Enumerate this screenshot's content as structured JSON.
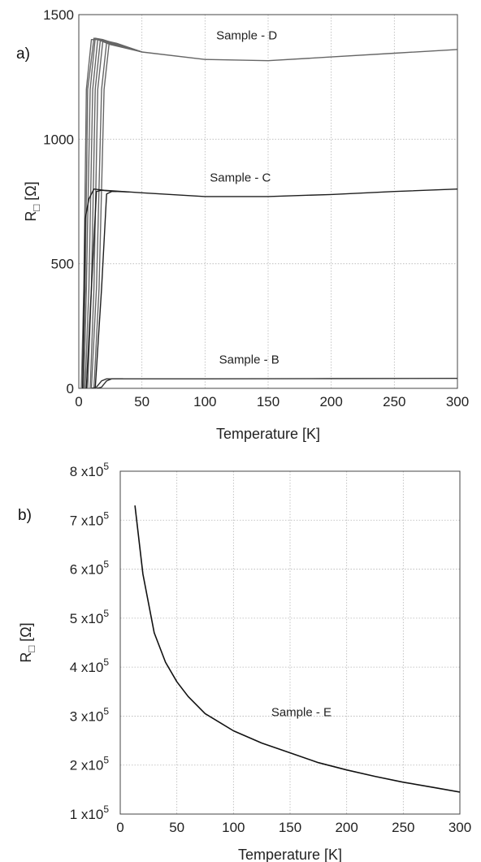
{
  "chart_data": [
    {
      "panel_label": "a)",
      "type": "line",
      "xlabel": "Temperature [K]",
      "ylabel_main": "R",
      "ylabel_sub": "□",
      "ylabel_unit": "[Ω]",
      "xlim": [
        0,
        300
      ],
      "ylim": [
        0,
        1500
      ],
      "x_ticks": [
        "0",
        "50",
        "100",
        "150",
        "200",
        "250",
        "300"
      ],
      "y_ticks": [
        "0",
        "500",
        "1000",
        "1500"
      ],
      "grid": true,
      "annotations": [
        {
          "text": "Sample - D",
          "x": 133,
          "y": 1400
        },
        {
          "text": "Sample - C",
          "x": 128,
          "y": 830
        },
        {
          "text": "Sample - B",
          "x": 135,
          "y": 100
        }
      ],
      "series": [
        {
          "group": "D",
          "x": [
            2,
            4,
            6,
            10,
            15,
            25,
            50,
            100,
            150,
            200,
            250,
            300
          ],
          "y": [
            0,
            400,
            1200,
            1400,
            1400,
            1380,
            1350,
            1320,
            1315,
            1330,
            1345,
            1360
          ]
        },
        {
          "group": "D",
          "x": [
            3,
            5,
            7,
            12,
            17,
            27,
            50
          ],
          "y": [
            0,
            400,
            1200,
            1405,
            1400,
            1385,
            1350
          ]
        },
        {
          "group": "D",
          "x": [
            4,
            6,
            9,
            13,
            19,
            28,
            50
          ],
          "y": [
            0,
            400,
            1200,
            1405,
            1400,
            1385,
            1350
          ]
        },
        {
          "group": "D",
          "x": [
            5,
            8,
            11,
            15,
            21,
            30,
            50
          ],
          "y": [
            0,
            400,
            1200,
            1400,
            1395,
            1385,
            1350
          ]
        },
        {
          "group": "D",
          "x": [
            7,
            10,
            13,
            17,
            23,
            31,
            50
          ],
          "y": [
            0,
            400,
            1200,
            1395,
            1390,
            1382,
            1350
          ]
        },
        {
          "group": "D",
          "x": [
            9,
            12,
            15,
            19,
            25,
            33,
            50
          ],
          "y": [
            0,
            400,
            1200,
            1392,
            1385,
            1378,
            1350
          ]
        },
        {
          "group": "D",
          "x": [
            10,
            14,
            18,
            22,
            27,
            35,
            50
          ],
          "y": [
            0,
            400,
            1200,
            1388,
            1382,
            1375,
            1350
          ]
        },
        {
          "group": "D",
          "x": [
            12,
            16,
            20,
            24,
            29,
            37,
            50
          ],
          "y": [
            0,
            400,
            1200,
            1385,
            1378,
            1370,
            1350
          ]
        },
        {
          "group": "C",
          "x": [
            3,
            5,
            8,
            12,
            20,
            50,
            100,
            150,
            200,
            250,
            300
          ],
          "y": [
            0,
            680,
            760,
            800,
            795,
            785,
            770,
            770,
            778,
            790,
            800
          ]
        },
        {
          "group": "C",
          "x": [
            6,
            10,
            14,
            18,
            22,
            30
          ],
          "y": [
            0,
            400,
            790,
            795,
            793,
            790
          ]
        },
        {
          "group": "C",
          "x": [
            13,
            18,
            22,
            26,
            30,
            40
          ],
          "y": [
            0,
            400,
            780,
            790,
            790,
            788
          ]
        },
        {
          "group": "B",
          "x": [
            10,
            14,
            18,
            22,
            30,
            100,
            200,
            300
          ],
          "y": [
            0,
            5,
            30,
            38,
            38,
            38,
            39,
            40
          ]
        },
        {
          "group": "B",
          "x": [
            14,
            18,
            22,
            26,
            35
          ],
          "y": [
            0,
            5,
            30,
            38,
            38
          ]
        }
      ]
    },
    {
      "panel_label": "b)",
      "type": "scatter",
      "xlabel": "Temperature [K]",
      "ylabel_main": "R",
      "ylabel_sub": "□",
      "ylabel_unit": "[Ω]",
      "xlim": [
        0,
        300
      ],
      "ylim": [
        100000,
        800000
      ],
      "x_ticks": [
        "0",
        "50",
        "100",
        "150",
        "200",
        "250",
        "300"
      ],
      "y_ticks": [
        {
          "mantissa": "1",
          "exp": "5"
        },
        {
          "mantissa": "2",
          "exp": "5"
        },
        {
          "mantissa": "3",
          "exp": "5"
        },
        {
          "mantissa": "4",
          "exp": "5"
        },
        {
          "mantissa": "5",
          "exp": "5"
        },
        {
          "mantissa": "6",
          "exp": "5"
        },
        {
          "mantissa": "7",
          "exp": "5"
        },
        {
          "mantissa": "8",
          "exp": "5"
        }
      ],
      "tick_times": "x",
      "tick_base": "10",
      "grid": true,
      "annotations": [
        {
          "text": "Sample - E",
          "x": 160,
          "y": 300000
        }
      ],
      "series": [
        {
          "group": "E",
          "x": [
            13,
            20,
            30,
            40,
            50,
            60,
            75,
            100,
            125,
            150,
            175,
            200,
            225,
            250,
            275,
            300
          ],
          "y": [
            730000,
            590000,
            470000,
            410000,
            370000,
            340000,
            305000,
            270000,
            245000,
            225000,
            205000,
            190000,
            177000,
            165000,
            155000,
            145000
          ]
        }
      ]
    }
  ]
}
